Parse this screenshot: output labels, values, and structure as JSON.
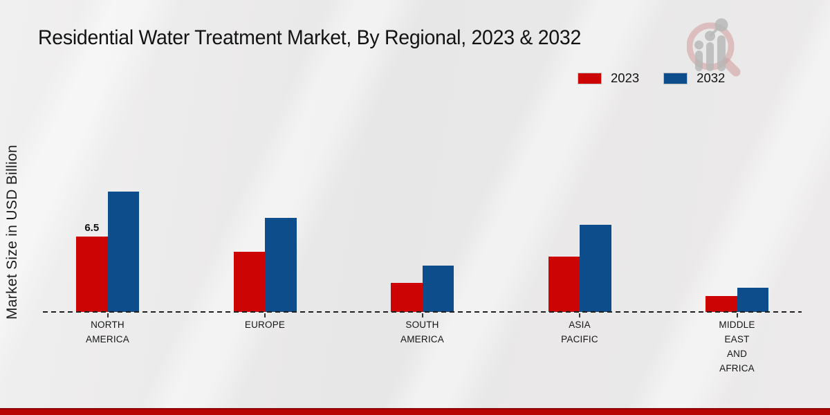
{
  "page": {
    "background_color": "#e9e8e8",
    "footer_strip_color": "#b90404"
  },
  "logo": {
    "description": "magnifying-glass with rising bar chart watermark",
    "ring_color": "#cf9a9a",
    "bars_color": "#b9b9b9"
  },
  "chart_data": {
    "type": "bar",
    "title": "Residential Water Treatment Market, By Regional, 2023 & 2032",
    "ylabel": "Market Size in USD Billion",
    "xlabel": "",
    "categories": [
      [
        "NORTH",
        "AMERICA"
      ],
      [
        "EUROPE"
      ],
      [
        "SOUTH",
        "AMERICA"
      ],
      [
        "ASIA",
        "PACIFIC"
      ],
      [
        "MIDDLE",
        "EAST",
        "AND",
        "AFRICA"
      ]
    ],
    "series": [
      {
        "name": "2023",
        "color": "#cc0404",
        "values": [
          6.5,
          5.2,
          2.5,
          4.8,
          1.4
        ]
      },
      {
        "name": "2032",
        "color": "#0d4d8c",
        "values": [
          10.4,
          8.1,
          4.0,
          7.5,
          2.1
        ]
      }
    ],
    "annotations": [
      {
        "series_index": 0,
        "category_index": 0,
        "text": "6.5"
      }
    ],
    "ylim": [
      0,
      12
    ],
    "grid": false,
    "axis_line_style": "dashed",
    "legend_position": "top-right"
  }
}
